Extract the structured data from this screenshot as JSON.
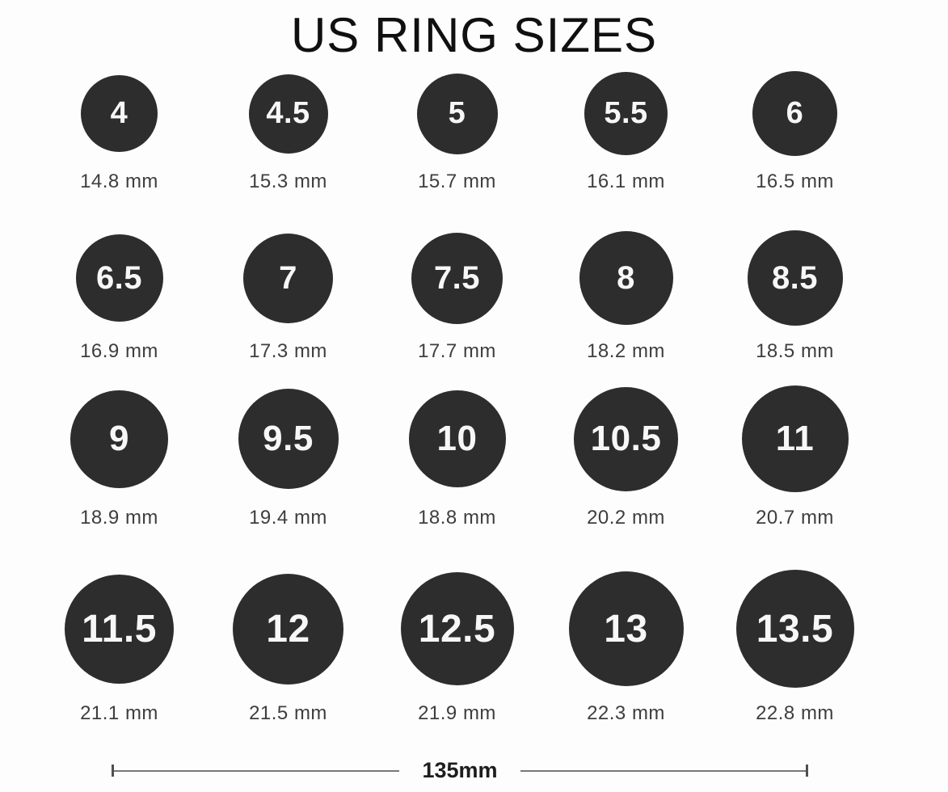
{
  "title": "US RING SIZES",
  "chart_data": {
    "type": "table",
    "title": "US RING SIZES",
    "columns": [
      "us_size",
      "inner_diameter"
    ],
    "layout": {
      "rows": 4,
      "columns": 5,
      "legend": "none",
      "grid": "off"
    },
    "entries": [
      {
        "us_size": "4",
        "diameter_label": "14.8 mm"
      },
      {
        "us_size": "4.5",
        "diameter_label": "15.3 mm"
      },
      {
        "us_size": "5",
        "diameter_label": "15.7 mm"
      },
      {
        "us_size": "5.5",
        "diameter_label": "16.1 mm"
      },
      {
        "us_size": "6",
        "diameter_label": "16.5 mm"
      },
      {
        "us_size": "6.5",
        "diameter_label": "16.9 mm"
      },
      {
        "us_size": "7",
        "diameter_label": "17.3 mm"
      },
      {
        "us_size": "7.5",
        "diameter_label": "17.7 mm"
      },
      {
        "us_size": "8",
        "diameter_label": "18.2 mm"
      },
      {
        "us_size": "8.5",
        "diameter_label": "18.5 mm"
      },
      {
        "us_size": "9",
        "diameter_label": "18.9 mm"
      },
      {
        "us_size": "9.5",
        "diameter_label": "19.4 mm"
      },
      {
        "us_size": "10",
        "diameter_label": "18.8 mm"
      },
      {
        "us_size": "10.5",
        "diameter_label": "20.2 mm"
      },
      {
        "us_size": "11",
        "diameter_label": "20.7 mm"
      },
      {
        "us_size": "11.5",
        "diameter_label": "21.1 mm"
      },
      {
        "us_size": "12",
        "diameter_label": "21.5 mm"
      },
      {
        "us_size": "12.5",
        "diameter_label": "21.9 mm"
      },
      {
        "us_size": "13",
        "diameter_label": "22.3 mm"
      },
      {
        "us_size": "13.5",
        "diameter_label": "22.8 mm"
      }
    ],
    "scale_bar": {
      "label": "135mm"
    }
  },
  "colors": {
    "background": "#fdfdfd",
    "title": "#101010",
    "circle": "#2d2d2d",
    "circle_text": "#f7f7f7",
    "label": "#3e3e3e",
    "ruler_line": "#787878",
    "ruler_tick": "#4f4f4f",
    "ruler_text": "#1d1d1d"
  }
}
